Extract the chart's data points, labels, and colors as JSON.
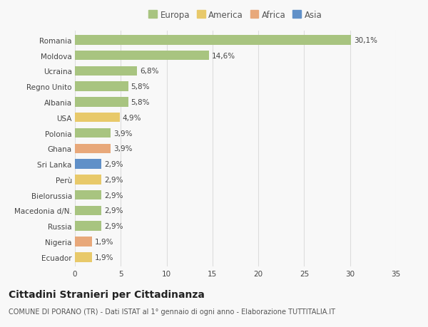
{
  "countries": [
    "Romania",
    "Moldova",
    "Ucraina",
    "Regno Unito",
    "Albania",
    "USA",
    "Polonia",
    "Ghana",
    "Sri Lanka",
    "Perù",
    "Bielorussia",
    "Macedonia d/N.",
    "Russia",
    "Nigeria",
    "Ecuador"
  ],
  "values": [
    30.1,
    14.6,
    6.8,
    5.8,
    5.8,
    4.9,
    3.9,
    3.9,
    2.9,
    2.9,
    2.9,
    2.9,
    2.9,
    1.9,
    1.9
  ],
  "labels": [
    "30,1%",
    "14,6%",
    "6,8%",
    "5,8%",
    "5,8%",
    "4,9%",
    "3,9%",
    "3,9%",
    "2,9%",
    "2,9%",
    "2,9%",
    "2,9%",
    "2,9%",
    "1,9%",
    "1,9%"
  ],
  "continents": [
    "Europa",
    "Europa",
    "Europa",
    "Europa",
    "Europa",
    "America",
    "Europa",
    "Africa",
    "Asia",
    "America",
    "Europa",
    "Europa",
    "Europa",
    "Africa",
    "America"
  ],
  "colors": {
    "Europa": "#a8c480",
    "America": "#e8c96a",
    "Africa": "#e8a87a",
    "Asia": "#6090c8"
  },
  "xlim": [
    0,
    35
  ],
  "xticks": [
    0,
    5,
    10,
    15,
    20,
    25,
    30,
    35
  ],
  "title": "Cittadini Stranieri per Cittadinanza",
  "subtitle": "COMUNE DI PORANO (TR) - Dati ISTAT al 1° gennaio di ogni anno - Elaborazione TUTTITALIA.IT",
  "background_color": "#f8f8f8",
  "grid_color": "#dddddd",
  "bar_height": 0.62,
  "label_fontsize": 7.5,
  "tick_fontsize": 7.5,
  "title_fontsize": 10,
  "subtitle_fontsize": 7,
  "legend_fontsize": 8.5
}
